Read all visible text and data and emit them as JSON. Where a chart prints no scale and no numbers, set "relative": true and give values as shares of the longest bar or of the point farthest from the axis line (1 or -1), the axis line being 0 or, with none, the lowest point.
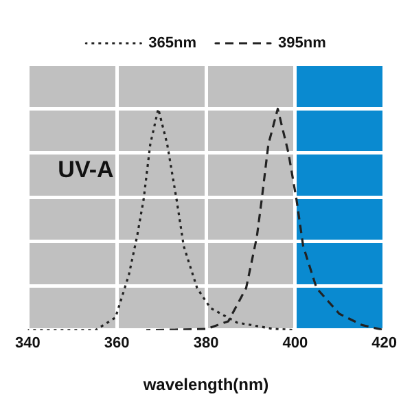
{
  "chart_data": {
    "type": "line",
    "relative": true,
    "xlabel": "wavelength(nm)",
    "xlim": [
      340,
      420
    ],
    "xticks": [
      340,
      360,
      380,
      400,
      420
    ],
    "grid": true,
    "legend": "top",
    "marker": "none",
    "bands": [
      {
        "axis": "x",
        "from": 340,
        "to": 400,
        "label": "UV-A",
        "color": "#c0c0c0"
      },
      {
        "axis": "x",
        "from": 400,
        "to": 420,
        "color": "#0a8ad0"
      }
    ],
    "series": [
      {
        "name": "365nm",
        "color": "#222222",
        "line_style": "dotted",
        "x": [
          340,
          355.2,
          359.7,
          362.7,
          364.5,
          366,
          367.5,
          369.3,
          371.3,
          373.4,
          375,
          378,
          381,
          387,
          395,
          400
        ],
        "values": [
          0,
          0,
          0.057,
          0.25,
          0.42,
          0.59,
          0.84,
          1,
          0.84,
          0.59,
          0.38,
          0.19,
          0.1,
          0.034,
          0.006,
          0
        ]
      },
      {
        "name": "395nm",
        "color": "#222222",
        "line_style": "dashed",
        "x": [
          366.6,
          380,
          385,
          389,
          391.4,
          392.5,
          394,
          396.1,
          398.5,
          400.3,
          401.8,
          404.8,
          409.9,
          415,
          420
        ],
        "values": [
          0,
          0.005,
          0.04,
          0.19,
          0.42,
          0.59,
          0.84,
          1,
          0.8,
          0.59,
          0.38,
          0.19,
          0.074,
          0.023,
          0
        ]
      }
    ]
  }
}
